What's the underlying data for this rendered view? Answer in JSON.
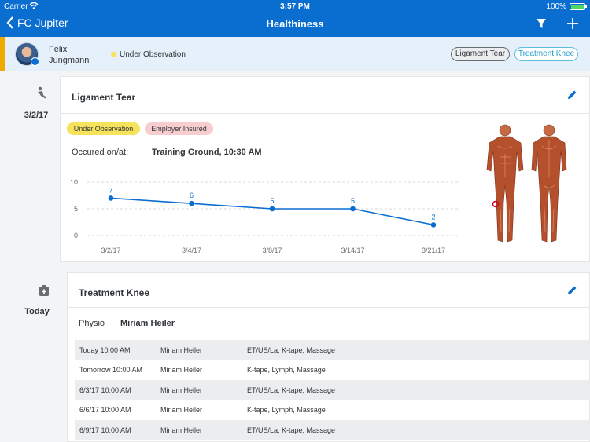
{
  "status_bar": {
    "carrier": "Carrier",
    "time": "3:57 PM",
    "battery": "100%"
  },
  "nav": {
    "back_label": "FC Jupiter",
    "title": "Healthiness"
  },
  "player": {
    "first_name": "Felix",
    "last_name": "Jungmann",
    "status": "Under Observation",
    "chips": [
      "Ligament Tear",
      "Treatment Knee"
    ]
  },
  "injury": {
    "date": "3/2/17",
    "title": "Ligament Tear",
    "tags": [
      "Under Observation",
      "Employer Insured"
    ],
    "occurred_label": "Occured on/at:",
    "occurred_value": "Training Ground, 10:30 AM"
  },
  "chart_data": {
    "type": "line",
    "categories": [
      "3/2/17",
      "3/4/17",
      "3/8/17",
      "3/14/17",
      "3/21/17"
    ],
    "values": [
      7,
      6,
      5,
      5,
      2
    ],
    "yticks": [
      10,
      5,
      0
    ],
    "ylim": [
      0,
      10
    ],
    "grid": true,
    "color": "#0a6ed1"
  },
  "treatment": {
    "date": "Today",
    "title": "Treatment Knee",
    "physio_label": "Physio",
    "physio_value": "Miriam Heiler",
    "rows": [
      {
        "when": "Today 10:00 AM",
        "who": "Miriam Heiler",
        "what": "ET/US/La, K-tape, Massage"
      },
      {
        "when": "Tomorrow 10:00 AM",
        "who": "Miriam Heiler",
        "what": "K-tape, Lymph, Massage"
      },
      {
        "when": "6/3/17 10:00 AM",
        "who": "Miriam Heiler",
        "what": "ET/US/La, K-tape, Massage"
      },
      {
        "when": "6/6/17 10:00 AM",
        "who": "Miriam Heiler",
        "what": "K-tape, Lymph, Massage"
      },
      {
        "when": "6/9/17 10:00 AM",
        "who": "Miriam Heiler",
        "what": "ET/US/La, K-tape, Massage"
      }
    ]
  },
  "colors": {
    "brand": "#0a6ed1",
    "observation": "#f7e25c",
    "insured": "#f8cdd0",
    "highlight_bar": "#f0ab00"
  }
}
